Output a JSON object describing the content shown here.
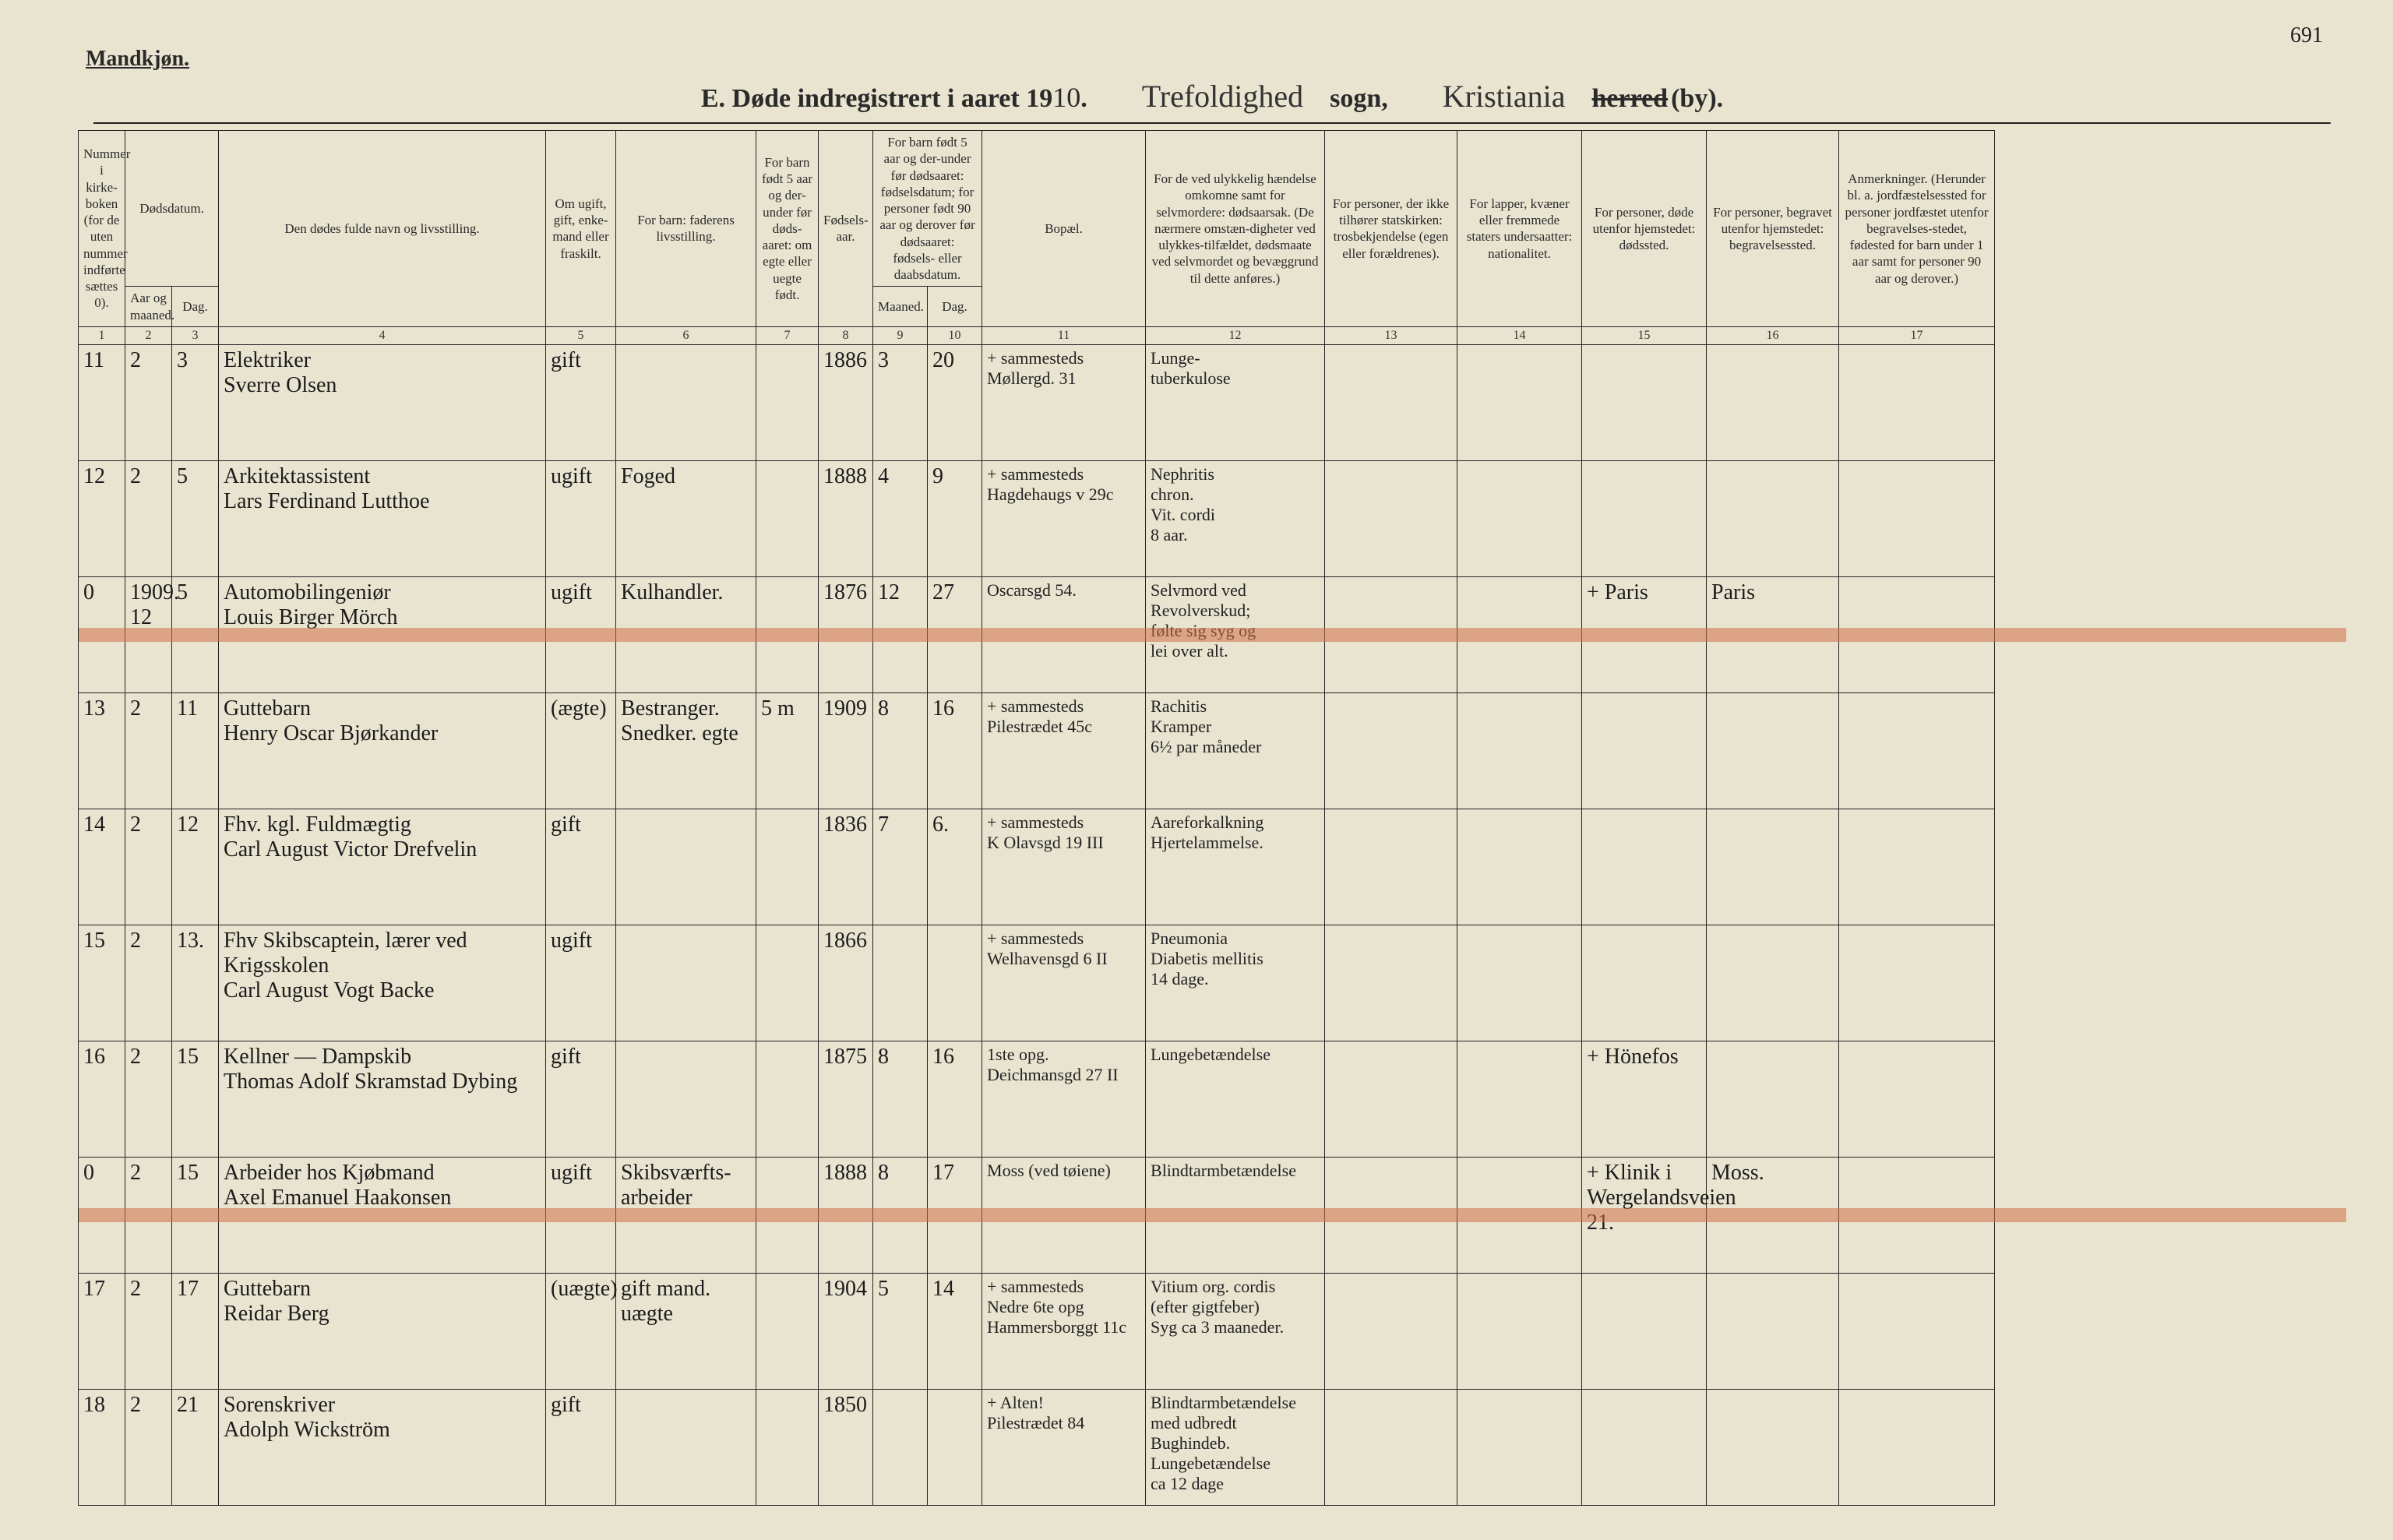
{
  "page_number_handwritten": "691",
  "gender_label": "Mandkjøn.",
  "title": {
    "prefix": "E.  Døde indregistrert i aaret 19",
    "year_written": "10",
    "period": ".",
    "sogn_written": "Trefoldighed",
    "sogn_label": "sogn,",
    "herred_written": "Kristiania",
    "herred_struck": "herred",
    "by_label": "(by)."
  },
  "headers": {
    "c1": "Nummer i kirke-boken (for de uten nummer indførte sættes 0).",
    "c2_group": "Dødsdatum.",
    "c2": "Aar og maaned.",
    "c3": "Dag.",
    "c4": "Den dødes fulde navn og livsstilling.",
    "c5": "Om ugift, gift, enke-mand eller fraskilt.",
    "c6": "For barn: faderens livsstilling.",
    "c7": "For barn født 5 aar og der-under før døds-aaret: om egte eller uegte født.",
    "c8": "Fødsels-aar.",
    "c9_10_group": "For barn født 5 aar og der-under før dødsaaret: fødselsdatum; for personer født 90 aar og derover før dødsaaret: fødsels- eller daabsdatum.",
    "c9": "Maaned.",
    "c10": "Dag.",
    "c11": "Bopæl.",
    "c12": "For de ved ulykkelig hændelse omkomne samt for selvmordere: dødsaarsak. (De nærmere omstæn-digheter ved ulykkes-tilfældet, dødsmaate ved selvmordet og bevæggrund til dette anføres.)",
    "c13": "For personer, der ikke tilhører statskirken: trosbekjendelse (egen eller forældrenes).",
    "c14": "For lapper, kvæner eller fremmede staters undersaatter: nationalitet.",
    "c15": "For personer, døde utenfor hjemstedet: dødssted.",
    "c16": "For personer, begravet utenfor hjemstedet: begravelsessted.",
    "c17": "Anmerkninger. (Herunder bl. a. jordfæstelsessted for personer jordfæstet utenfor begravelses-stedet, fødested for barn under 1 aar samt for personer 90 aar og derover.)"
  },
  "colnums": [
    "1",
    "2",
    "3",
    "4",
    "5",
    "6",
    "7",
    "8",
    "9",
    "10",
    "11",
    "12",
    "13",
    "14",
    "15",
    "16",
    "17"
  ],
  "rows": [
    {
      "num": "11",
      "month": "2",
      "day": "3",
      "name": "Elektriker\nSverre Olsen",
      "civil": "gift",
      "father": "",
      "legit": "",
      "birth_year": "1886",
      "b_m": "3",
      "b_d": "20",
      "residence": "+ sammesteds\nMøllergd. 31",
      "cause": "Lunge-\ntuberkulose",
      "c13": "",
      "c14": "",
      "c15": "",
      "c16": "",
      "c17": "",
      "red": false
    },
    {
      "num": "12",
      "month": "2",
      "day": "5",
      "name": "Arkitektassistent\nLars Ferdinand Lutthoe",
      "civil": "ugift",
      "father": "Foged",
      "legit": "",
      "birth_year": "1888",
      "b_m": "4",
      "b_d": "9",
      "residence": "+ sammesteds\nHagdehaugs v 29c",
      "cause": "Nephritis\nchron.\nVit. cordi\n8 aar.",
      "c13": "",
      "c14": "",
      "c15": "",
      "c16": "",
      "c17": "",
      "red": false
    },
    {
      "num": "0",
      "month": "1909.\n12",
      "day": "5",
      "name": "Automobilingeniør\nLouis Birger Mörch",
      "civil": "ugift",
      "father": "Kulhandler.",
      "legit": "",
      "birth_year": "1876",
      "b_m": "12",
      "b_d": "27",
      "residence": "Oscarsgd 54.",
      "cause": "Selvmord ved\nRevolverskud;\nfølte sig syg og\nlei over alt.",
      "c13": "",
      "c14": "",
      "c15": "+ Paris",
      "c16": "Paris",
      "c17": "",
      "red": true
    },
    {
      "num": "13",
      "month": "2",
      "day": "11",
      "name": "Guttebarn\nHenry Oscar Bjørkander",
      "civil": "(ægte)",
      "father": "Bestranger.\nSnedker.   egte",
      "legit": "5 m",
      "birth_year": "1909",
      "b_m": "8",
      "b_d": "16",
      "residence": "+ sammesteds\nPilestrædet 45c",
      "cause": "Rachitis\nKramper\n6½ par måneder",
      "c13": "",
      "c14": "",
      "c15": "",
      "c16": "",
      "c17": "",
      "red": false
    },
    {
      "num": "14",
      "month": "2",
      "day": "12",
      "name": "Fhv. kgl. Fuldmægtig\nCarl August Victor Drefvelin",
      "civil": "gift",
      "father": "",
      "legit": "",
      "birth_year": "1836",
      "b_m": "7",
      "b_d": "6.",
      "residence": "+ sammesteds\nK Olavsgd 19 III",
      "cause": "Aareforkalkning\nHjertelammelse.",
      "c13": "",
      "c14": "",
      "c15": "",
      "c16": "",
      "c17": "",
      "red": false
    },
    {
      "num": "15",
      "month": "2",
      "day": "13.",
      "name": "Fhv Skibscaptein, lærer ved Krigsskolen\nCarl August Vogt Backe",
      "civil": "ugift",
      "father": "",
      "legit": "",
      "birth_year": "1866",
      "b_m": "",
      "b_d": "",
      "residence": "+ sammesteds\nWelhavensgd 6 II",
      "cause": "Pneumonia\nDiabetis mellitis\n14 dage.",
      "c13": "",
      "c14": "",
      "c15": "",
      "c16": "",
      "c17": "",
      "red": false
    },
    {
      "num": "16",
      "month": "2",
      "day": "15",
      "name": "Kellner — Dampskib\nThomas Adolf Skramstad Dybing",
      "civil": "gift",
      "father": "",
      "legit": "",
      "birth_year": "1875",
      "b_m": "8",
      "b_d": "16",
      "residence": "1ste opg.\nDeichmansgd 27 II",
      "cause": "Lungebetændelse",
      "c13": "",
      "c14": "",
      "c15": "+ Hönefos",
      "c16": "",
      "c17": "",
      "red": false
    },
    {
      "num": "0",
      "month": "2",
      "day": "15",
      "name": "Arbeider hos Kjøbmand\nAxel Emanuel Haakonsen",
      "civil": "ugift",
      "father": "Skibsværfts-\narbeider",
      "legit": "",
      "birth_year": "1888",
      "b_m": "8",
      "b_d": "17",
      "residence": "Moss (ved tøiene)",
      "cause": "Blindtarmbetændelse",
      "c13": "",
      "c14": "",
      "c15": "+ Klinik i\nWergelandsveien 21.",
      "c16": "Moss.",
      "c17": "",
      "red": true
    },
    {
      "num": "17",
      "month": "2",
      "day": "17",
      "name": "Guttebarn\nReidar Berg",
      "civil": "(uægte)",
      "father": "gift mand.   uægte",
      "legit": "",
      "birth_year": "1904",
      "b_m": "5",
      "b_d": "14",
      "residence": "+ sammesteds\nNedre 6te opg\nHammersborggt 11c",
      "cause": "Vitium org. cordis\n(efter gigtfeber)\nSyg ca 3 maaneder.",
      "c13": "",
      "c14": "",
      "c15": "",
      "c16": "",
      "c17": "",
      "red": false
    },
    {
      "num": "18",
      "month": "2",
      "day": "21",
      "name": "Sorenskriver\nAdolph Wickström",
      "civil": "gift",
      "father": "",
      "legit": "",
      "birth_year": "1850",
      "b_m": "",
      "b_d": "",
      "residence": "+ Alten!\nPilestrædet 84",
      "cause": "Blindtarmbetændelse\nmed udbredt Bughindeb.\nLungebetændelse\nca 12 dage",
      "c13": "",
      "c14": "",
      "c15": "",
      "c16": "",
      "c17": "",
      "red": false
    }
  ]
}
